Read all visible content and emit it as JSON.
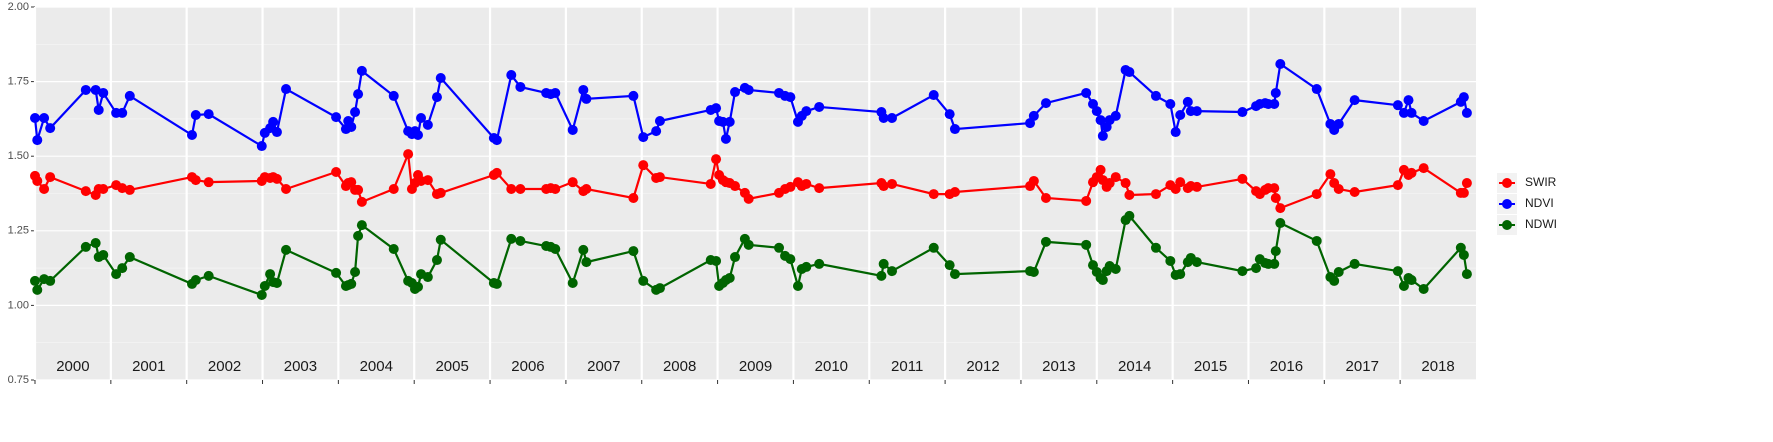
{
  "chart_data": {
    "type": "line",
    "x": [
      2000.0,
      2000.03,
      2000.12,
      2000.2,
      2000.67,
      2000.8,
      2000.84,
      2000.9,
      2001.07,
      2001.15,
      2001.25,
      2002.07,
      2002.12,
      2002.29,
      2002.99,
      2003.03,
      2003.1,
      2003.14,
      2003.19,
      2003.31,
      2003.97,
      2004.1,
      2004.13,
      2004.17,
      2004.22,
      2004.26,
      2004.31,
      2004.73,
      2004.92,
      2004.97,
      2005.01,
      2005.05,
      2005.09,
      2005.18,
      2005.3,
      2005.35,
      2006.05,
      2006.09,
      2006.28,
      2006.4,
      2006.74,
      2006.8,
      2006.86,
      2007.09,
      2007.23,
      2007.27,
      2007.89,
      2008.02,
      2008.19,
      2008.24,
      2008.91,
      2008.98,
      2009.02,
      2009.07,
      2009.11,
      2009.16,
      2009.23,
      2009.36,
      2009.41,
      2009.81,
      2009.89,
      2009.96,
      2010.06,
      2010.11,
      2010.17,
      2010.34,
      2011.16,
      2011.19,
      2011.3,
      2011.85,
      2012.06,
      2012.13,
      2013.12,
      2013.17,
      2013.33,
      2013.86,
      2013.95,
      2014.0,
      2014.05,
      2014.08,
      2014.13,
      2014.17,
      2014.25,
      2014.38,
      2014.43,
      2014.78,
      2014.97,
      2015.04,
      2015.1,
      2015.2,
      2015.24,
      2015.32,
      2015.92,
      2016.1,
      2016.15,
      2016.22,
      2016.26,
      2016.34,
      2016.36,
      2016.42,
      2016.9,
      2017.08,
      2017.13,
      2017.19,
      2017.4,
      2017.97,
      2018.05,
      2018.11,
      2018.15,
      2018.31,
      2018.8,
      2018.84,
      2018.88
    ],
    "series": [
      {
        "name": "SWIR",
        "color": "#ff0000",
        "values": [
          1.434,
          1.417,
          1.39,
          1.43,
          1.383,
          1.37,
          1.39,
          1.39,
          1.403,
          1.393,
          1.387,
          1.43,
          1.42,
          1.413,
          1.417,
          1.43,
          1.427,
          1.43,
          1.424,
          1.39,
          1.447,
          1.4,
          1.41,
          1.413,
          1.387,
          1.387,
          1.347,
          1.39,
          1.507,
          1.39,
          1.41,
          1.437,
          1.417,
          1.42,
          1.373,
          1.377,
          1.437,
          1.444,
          1.39,
          1.39,
          1.39,
          1.393,
          1.39,
          1.413,
          1.383,
          1.39,
          1.36,
          1.47,
          1.427,
          1.43,
          1.407,
          1.49,
          1.437,
          1.42,
          1.413,
          1.41,
          1.4,
          1.377,
          1.357,
          1.377,
          1.39,
          1.397,
          1.413,
          1.4,
          1.407,
          1.393,
          1.41,
          1.4,
          1.407,
          1.373,
          1.373,
          1.38,
          1.4,
          1.417,
          1.36,
          1.35,
          1.413,
          1.43,
          1.454,
          1.42,
          1.397,
          1.41,
          1.43,
          1.41,
          1.37,
          1.373,
          1.403,
          1.39,
          1.413,
          1.393,
          1.4,
          1.397,
          1.424,
          1.383,
          1.373,
          1.387,
          1.393,
          1.393,
          1.36,
          1.326,
          1.373,
          1.44,
          1.41,
          1.39,
          1.38,
          1.403,
          1.454,
          1.437,
          1.444,
          1.46,
          1.377,
          1.377,
          1.41
        ]
      },
      {
        "name": "NDVI",
        "color": "#0000ff",
        "values": [
          1.628,
          1.554,
          1.628,
          1.594,
          1.722,
          1.722,
          1.655,
          1.712,
          1.645,
          1.645,
          1.702,
          1.571,
          1.638,
          1.641,
          1.534,
          1.578,
          1.594,
          1.615,
          1.581,
          1.725,
          1.631,
          1.591,
          1.618,
          1.598,
          1.648,
          1.708,
          1.786,
          1.702,
          1.584,
          1.574,
          1.584,
          1.571,
          1.628,
          1.605,
          1.698,
          1.762,
          1.561,
          1.554,
          1.772,
          1.732,
          1.712,
          1.708,
          1.712,
          1.588,
          1.722,
          1.692,
          1.702,
          1.564,
          1.584,
          1.618,
          1.655,
          1.661,
          1.618,
          1.615,
          1.558,
          1.615,
          1.715,
          1.729,
          1.722,
          1.712,
          1.702,
          1.698,
          1.615,
          1.635,
          1.651,
          1.665,
          1.648,
          1.628,
          1.628,
          1.705,
          1.641,
          1.591,
          1.611,
          1.635,
          1.678,
          1.712,
          1.675,
          1.651,
          1.621,
          1.568,
          1.598,
          1.621,
          1.635,
          1.789,
          1.782,
          1.702,
          1.675,
          1.581,
          1.638,
          1.682,
          1.651,
          1.651,
          1.648,
          1.668,
          1.675,
          1.678,
          1.675,
          1.675,
          1.712,
          1.809,
          1.725,
          1.608,
          1.588,
          1.608,
          1.688,
          1.671,
          1.645,
          1.688,
          1.645,
          1.618,
          1.682,
          1.698,
          1.645
        ]
      },
      {
        "name": "NDWI",
        "color": "#006400",
        "values": [
          1.082,
          1.052,
          1.088,
          1.082,
          1.196,
          1.209,
          1.162,
          1.169,
          1.105,
          1.125,
          1.162,
          1.072,
          1.085,
          1.099,
          1.035,
          1.065,
          1.105,
          1.078,
          1.075,
          1.186,
          1.109,
          1.065,
          1.068,
          1.072,
          1.112,
          1.233,
          1.269,
          1.189,
          1.082,
          1.075,
          1.055,
          1.062,
          1.105,
          1.095,
          1.152,
          1.22,
          1.075,
          1.072,
          1.223,
          1.216,
          1.199,
          1.196,
          1.189,
          1.075,
          1.186,
          1.145,
          1.182,
          1.082,
          1.052,
          1.058,
          1.152,
          1.149,
          1.065,
          1.075,
          1.085,
          1.092,
          1.162,
          1.223,
          1.203,
          1.193,
          1.166,
          1.155,
          1.065,
          1.122,
          1.129,
          1.139,
          1.099,
          1.139,
          1.115,
          1.193,
          1.135,
          1.105,
          1.115,
          1.112,
          1.213,
          1.203,
          1.135,
          1.112,
          1.092,
          1.085,
          1.115,
          1.132,
          1.122,
          1.286,
          1.3,
          1.193,
          1.149,
          1.102,
          1.105,
          1.145,
          1.159,
          1.145,
          1.115,
          1.125,
          1.155,
          1.142,
          1.139,
          1.139,
          1.182,
          1.276,
          1.216,
          1.095,
          1.082,
          1.112,
          1.139,
          1.115,
          1.065,
          1.092,
          1.085,
          1.055,
          1.193,
          1.169,
          1.105
        ]
      }
    ],
    "xlim": [
      2000,
      2019
    ],
    "xticks": [
      2000,
      2001,
      2002,
      2003,
      2004,
      2005,
      2006,
      2007,
      2008,
      2009,
      2010,
      2011,
      2012,
      2013,
      2014,
      2015,
      2016,
      2017,
      2018
    ],
    "year_labels": [
      "2000",
      "2001",
      "2002",
      "2003",
      "2004",
      "2005",
      "2006",
      "2007",
      "2008",
      "2009",
      "2010",
      "2011",
      "2012",
      "2013",
      "2014",
      "2015",
      "2016",
      "2017",
      "2018"
    ],
    "ylim": [
      0.75,
      2.0
    ],
    "yticks": [
      {
        "value": 0.75,
        "label": "0.75"
      },
      {
        "value": 1.0,
        "label": "1.00"
      },
      {
        "value": 1.25,
        "label": "1.25"
      },
      {
        "value": 1.5,
        "label": "1.50"
      },
      {
        "value": 1.75,
        "label": "1.75"
      },
      {
        "value": 2.0,
        "label": "2.00"
      }
    ],
    "grid": true,
    "legend": "right"
  }
}
